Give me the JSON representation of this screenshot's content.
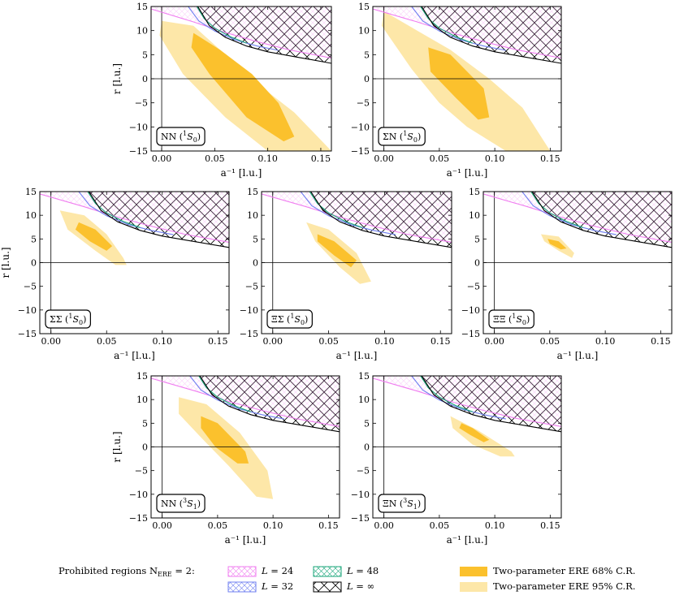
{
  "legend": {
    "prohibited_title": "Prohibited regions N",
    "prohibited_sub": "ERE",
    "prohibited_suffix": " = 2:",
    "entries": [
      {
        "key": "L24",
        "label_prefix": "L = ",
        "label_value": "24",
        "color": "#f07df0"
      },
      {
        "key": "L32",
        "label_prefix": "L = ",
        "label_value": "32",
        "color": "#6f7ff0"
      },
      {
        "key": "L48",
        "label_prefix": "L = ",
        "label_value": "48",
        "color": "#1aa67a"
      },
      {
        "key": "Linf",
        "label_prefix": "L = ",
        "label_value": "∞",
        "color": "#000000"
      }
    ],
    "cr68_label": "Two-parameter ERE 68% C.R.",
    "cr95_label": "Two-parameter ERE 95% C.R."
  },
  "colors": {
    "cr68": "#fbc12d",
    "cr95": "#fde7a8",
    "L24": "#f07df0",
    "L32": "#6f7ff0",
    "L48": "#1aa67a",
    "Linf": "#000000"
  },
  "chart_data": [
    {
      "id": "NN_1S0",
      "type": "area",
      "badge": {
        "pre": "NN (",
        "sup": "1",
        "post": "S",
        "sub": "0",
        "close": ")"
      },
      "xlabel": "a⁻¹ [l.u.]",
      "ylabel": "r [l.u.]",
      "xlim": [
        -0.01,
        0.16
      ],
      "ylim": [
        -15,
        15
      ],
      "xticks": [
        0.0,
        0.05,
        0.1,
        0.15
      ],
      "xtick_labels": [
        "0.00",
        "0.05",
        "0.10",
        "0.15"
      ],
      "yticks": [
        -15,
        -10,
        -5,
        0,
        5,
        10,
        15
      ],
      "ytick_labels": [
        "−15",
        "−10",
        "−5",
        "0",
        "5",
        "10",
        "15"
      ],
      "cr95": [
        [
          0.0,
          12.0
        ],
        [
          0.03,
          11.0
        ],
        [
          0.06,
          5.0
        ],
        [
          0.09,
          -1.0
        ],
        [
          0.125,
          -7.0
        ],
        [
          0.16,
          -15.0
        ],
        [
          0.15,
          -15.0
        ],
        [
          0.1,
          -15.0
        ],
        [
          0.06,
          -8.0
        ],
        [
          0.02,
          1.0
        ],
        [
          -0.002,
          9.0
        ]
      ],
      "cr68": [
        [
          0.03,
          9.5
        ],
        [
          0.055,
          6.0
        ],
        [
          0.085,
          1.0
        ],
        [
          0.11,
          -5.0
        ],
        [
          0.125,
          -12.0
        ],
        [
          0.115,
          -13.0
        ],
        [
          0.08,
          -8.0
        ],
        [
          0.045,
          1.0
        ],
        [
          0.028,
          6.5
        ]
      ]
    },
    {
      "id": "SigmaN_1S0",
      "type": "area",
      "badge": {
        "pre": "ΣN (",
        "sup": "1",
        "post": "S",
        "sub": "0",
        "close": ")"
      },
      "xlabel": "a⁻¹ [l.u.]",
      "ylabel": "",
      "xlim": [
        -0.01,
        0.16
      ],
      "ylim": [
        -15,
        15
      ],
      "xticks": [
        0.0,
        0.05,
        0.1,
        0.15
      ],
      "xtick_labels": [
        "0.00",
        "0.05",
        "0.10",
        "0.15"
      ],
      "yticks": [
        -15,
        -10,
        -5,
        0,
        5,
        10,
        15
      ],
      "ytick_labels": [
        "−15",
        "−10",
        "−5",
        "0",
        "5",
        "10",
        "15"
      ],
      "cr95": [
        [
          0.0,
          14.0
        ],
        [
          0.03,
          10.0
        ],
        [
          0.06,
          6.0
        ],
        [
          0.095,
          0.0
        ],
        [
          0.125,
          -6.0
        ],
        [
          0.15,
          -15.0
        ],
        [
          0.11,
          -15.0
        ],
        [
          0.075,
          -10.0
        ],
        [
          0.05,
          -5.0
        ],
        [
          0.025,
          2.0
        ],
        [
          -0.002,
          11.0
        ]
      ],
      "cr68": [
        [
          0.04,
          6.5
        ],
        [
          0.06,
          5.0
        ],
        [
          0.09,
          -2.0
        ],
        [
          0.095,
          -8.0
        ],
        [
          0.085,
          -8.5
        ],
        [
          0.065,
          -4.0
        ],
        [
          0.042,
          1.5
        ]
      ]
    },
    {
      "id": "SigmaSigma_1S0",
      "type": "area",
      "badge": {
        "pre": "ΣΣ (",
        "sup": "1",
        "post": "S",
        "sub": "0",
        "close": ")"
      },
      "xlabel": "a⁻¹ [l.u.]",
      "ylabel": "r [l.u.]",
      "xlim": [
        -0.01,
        0.16
      ],
      "ylim": [
        -15,
        15
      ],
      "xticks": [
        0.0,
        0.05,
        0.1,
        0.15
      ],
      "xtick_labels": [
        "0.00",
        "0.05",
        "0.10",
        "0.15"
      ],
      "yticks": [
        -15,
        -10,
        -5,
        0,
        5,
        10,
        15
      ],
      "ytick_labels": [
        "−15",
        "−10",
        "−5",
        "0",
        "5",
        "10",
        "15"
      ],
      "cr95": [
        [
          0.008,
          11.0
        ],
        [
          0.03,
          10.0
        ],
        [
          0.05,
          6.0
        ],
        [
          0.065,
          1.0
        ],
        [
          0.068,
          -0.5
        ],
        [
          0.058,
          -0.5
        ],
        [
          0.04,
          2.5
        ],
        [
          0.015,
          7.0
        ]
      ],
      "cr68": [
        [
          0.025,
          8.5
        ],
        [
          0.04,
          7.0
        ],
        [
          0.055,
          3.5
        ],
        [
          0.05,
          2.5
        ],
        [
          0.035,
          4.5
        ],
        [
          0.022,
          7.0
        ]
      ]
    },
    {
      "id": "XiSigma_1S0",
      "type": "area",
      "badge": {
        "pre": "ΞΣ (",
        "sup": "1",
        "post": "S",
        "sub": "0",
        "close": ")"
      },
      "xlabel": "a⁻¹ [l.u.]",
      "ylabel": "",
      "xlim": [
        -0.01,
        0.16
      ],
      "ylim": [
        -15,
        15
      ],
      "xticks": [
        0.0,
        0.05,
        0.1,
        0.15
      ],
      "xtick_labels": [
        "0.00",
        "0.05",
        "0.10",
        "0.15"
      ],
      "yticks": [
        -15,
        -10,
        -5,
        0,
        5,
        10,
        15
      ],
      "ytick_labels": [
        "−15",
        "−10",
        "−5",
        "0",
        "5",
        "10",
        "15"
      ],
      "cr95": [
        [
          0.03,
          8.5
        ],
        [
          0.05,
          7.0
        ],
        [
          0.075,
          2.0
        ],
        [
          0.088,
          -4.0
        ],
        [
          0.078,
          -4.5
        ],
        [
          0.06,
          -1.0
        ],
        [
          0.038,
          4.5
        ]
      ],
      "cr68": [
        [
          0.04,
          6.0
        ],
        [
          0.055,
          4.5
        ],
        [
          0.075,
          0.5
        ],
        [
          0.07,
          -1.0
        ],
        [
          0.055,
          1.5
        ],
        [
          0.04,
          4.5
        ]
      ]
    },
    {
      "id": "XiXi_1S0",
      "type": "area",
      "badge": {
        "pre": "ΞΞ (",
        "sup": "1",
        "post": "S",
        "sub": "0",
        "close": ")"
      },
      "xlabel": "a⁻¹ [l.u.]",
      "ylabel": "",
      "xlim": [
        -0.01,
        0.16
      ],
      "ylim": [
        -15,
        15
      ],
      "xticks": [
        0.0,
        0.05,
        0.1,
        0.15
      ],
      "xtick_labels": [
        "0.00",
        "0.05",
        "0.10",
        "0.15"
      ],
      "yticks": [
        -15,
        -10,
        -5,
        0,
        5,
        10,
        15
      ],
      "ytick_labels": [
        "−15",
        "−10",
        "−5",
        "0",
        "5",
        "10",
        "15"
      ],
      "cr95": [
        [
          0.042,
          6.0
        ],
        [
          0.058,
          5.5
        ],
        [
          0.072,
          2.0
        ],
        [
          0.07,
          1.0
        ],
        [
          0.058,
          2.5
        ],
        [
          0.045,
          4.5
        ]
      ],
      "cr68": [
        [
          0.048,
          5.0
        ],
        [
          0.058,
          4.5
        ],
        [
          0.065,
          3.0
        ],
        [
          0.06,
          2.8
        ],
        [
          0.05,
          4.0
        ]
      ]
    },
    {
      "id": "NN_3S1",
      "type": "area",
      "badge": {
        "pre": "NN (",
        "sup": "3",
        "post": "S",
        "sub": "1",
        "close": ")"
      },
      "xlabel": "a⁻¹ [l.u.]",
      "ylabel": "r [l.u.]",
      "xlim": [
        -0.01,
        0.16
      ],
      "ylim": [
        -15,
        15
      ],
      "xticks": [
        0.0,
        0.05,
        0.1,
        0.15
      ],
      "xtick_labels": [
        "0.00",
        "0.05",
        "0.10",
        "0.15"
      ],
      "yticks": [
        -15,
        -10,
        -5,
        0,
        5,
        10,
        15
      ],
      "ytick_labels": [
        "−15",
        "−10",
        "−5",
        "0",
        "5",
        "10",
        "15"
      ],
      "cr95": [
        [
          0.015,
          10.5
        ],
        [
          0.04,
          9.0
        ],
        [
          0.07,
          3.0
        ],
        [
          0.095,
          -5.0
        ],
        [
          0.1,
          -11.0
        ],
        [
          0.085,
          -10.5
        ],
        [
          0.06,
          -4.0
        ],
        [
          0.035,
          2.0
        ],
        [
          0.015,
          7.0
        ]
      ],
      "cr68": [
        [
          0.035,
          6.5
        ],
        [
          0.05,
          5.0
        ],
        [
          0.075,
          -1.0
        ],
        [
          0.078,
          -3.5
        ],
        [
          0.068,
          -3.5
        ],
        [
          0.048,
          0.0
        ],
        [
          0.035,
          4.0
        ]
      ]
    },
    {
      "id": "XiN_3S1",
      "type": "area",
      "badge": {
        "pre": "ΞN (",
        "sup": "3",
        "post": "S",
        "sub": "1",
        "close": ")"
      },
      "xlabel": "a⁻¹ [l.u.]",
      "ylabel": "",
      "xlim": [
        -0.01,
        0.16
      ],
      "ylim": [
        -15,
        15
      ],
      "xticks": [
        0.0,
        0.05,
        0.1,
        0.15
      ],
      "xtick_labels": [
        "0.00",
        "0.05",
        "0.10",
        "0.15"
      ],
      "yticks": [
        -15,
        -10,
        -5,
        0,
        5,
        10,
        15
      ],
      "ytick_labels": [
        "−15",
        "−10",
        "−5",
        "0",
        "5",
        "10",
        "15"
      ],
      "cr95": [
        [
          0.06,
          6.5
        ],
        [
          0.085,
          3.5
        ],
        [
          0.115,
          -1.0
        ],
        [
          0.118,
          -2.0
        ],
        [
          0.105,
          -2.0
        ],
        [
          0.08,
          0.5
        ],
        [
          0.062,
          4.0
        ]
      ],
      "cr68": [
        [
          0.07,
          5.0
        ],
        [
          0.08,
          4.0
        ],
        [
          0.095,
          1.5
        ],
        [
          0.09,
          1.0
        ],
        [
          0.078,
          2.5
        ],
        [
          0.068,
          4.0
        ]
      ]
    }
  ],
  "constraints": {
    "pink_curve": [
      [
        -0.01,
        14.5
      ],
      [
        0.03,
        11.8
      ],
      [
        0.06,
        9.6
      ],
      [
        0.09,
        7.7
      ],
      [
        0.12,
        6.0
      ],
      [
        0.16,
        4.3
      ]
    ],
    "black_curve": [
      [
        0.034,
        15.0
      ],
      [
        0.045,
        11.0
      ],
      [
        0.06,
        8.6
      ],
      [
        0.08,
        6.8
      ],
      [
        0.1,
        5.6
      ],
      [
        0.13,
        4.4
      ],
      [
        0.16,
        3.2
      ]
    ],
    "blue_curve": [
      [
        0.025,
        15.0
      ],
      [
        0.035,
        12.0
      ],
      [
        0.05,
        9.9
      ],
      [
        0.07,
        8.0
      ],
      [
        0.09,
        6.8
      ],
      [
        0.11,
        5.9
      ]
    ],
    "green_curve": [
      [
        0.033,
        15.0
      ],
      [
        0.04,
        12.5
      ],
      [
        0.05,
        10.5
      ],
      [
        0.065,
        8.7
      ],
      [
        0.08,
        7.4
      ]
    ]
  }
}
